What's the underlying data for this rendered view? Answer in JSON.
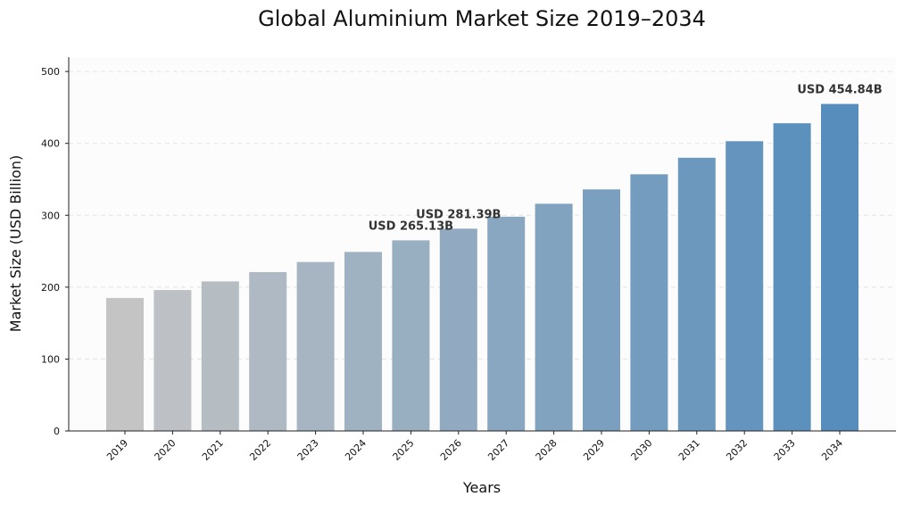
{
  "chart_data": {
    "type": "bar",
    "title": "Global Aluminium Market Size 2019–2034",
    "xlabel": "Years",
    "ylabel": "Market Size (USD Billion)",
    "categories": [
      "2019",
      "2020",
      "2021",
      "2022",
      "2023",
      "2024",
      "2025",
      "2026",
      "2027",
      "2028",
      "2029",
      "2030",
      "2031",
      "2032",
      "2033",
      "2034"
    ],
    "values": [
      185,
      196,
      208,
      221,
      235,
      249,
      265.13,
      281.39,
      298,
      316,
      336,
      357,
      380,
      403,
      428,
      454.84
    ],
    "ylim": [
      0,
      520
    ],
    "yticks": [
      0,
      100,
      200,
      300,
      400,
      500
    ],
    "grid": true,
    "annotations": [
      {
        "category": "2025",
        "text": "USD 265.13B"
      },
      {
        "category": "2026",
        "text": "USD 281.39B"
      },
      {
        "category": "2034",
        "text": "USD 454.84B"
      }
    ],
    "colors": {
      "bar_start": "#c4c4c4",
      "bar_end": "#568dbd",
      "plot_background": "#fcfcfc",
      "axis": "#222222"
    }
  }
}
